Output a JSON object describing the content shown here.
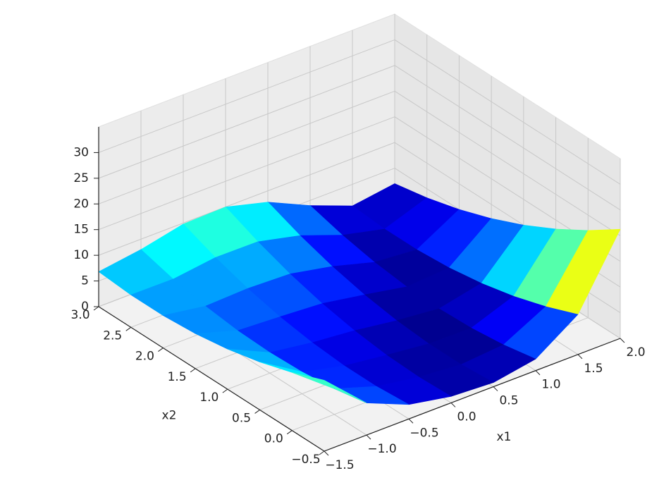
{
  "chart_data": {
    "type": "surface3d",
    "x_label": "x1",
    "y_label": "x2",
    "x": [
      -1.5,
      -1,
      -0.5,
      0,
      0.5,
      1,
      1.5,
      2
    ],
    "y": [
      -0.5,
      0,
      0.5,
      1,
      1.5,
      2,
      2.5,
      3
    ],
    "z": [
      [
        13.81,
        6.25,
        2.81,
        1.25,
        0.81,
        2.25,
        7.81,
        21.25
      ],
      [
        11.31,
        5,
        2.31,
        1,
        0.31,
        1,
        5.31,
        17
      ],
      [
        9.31,
        4.25,
        2.31,
        1.25,
        0.31,
        0.25,
        3.31,
        13.25
      ],
      [
        7.81,
        4,
        2.81,
        2,
        0.81,
        0,
        1.81,
        10
      ],
      [
        6.81,
        4.25,
        3.81,
        3.25,
        1.81,
        0.25,
        0.81,
        7.25
      ],
      [
        6.31,
        5,
        5.31,
        5,
        3.31,
        1,
        0.31,
        5
      ],
      [
        6.31,
        6.25,
        7.31,
        7.25,
        5.31,
        2.25,
        0.31,
        3.25
      ],
      [
        6.81,
        8,
        9.81,
        10,
        7.81,
        4,
        0.81,
        2
      ]
    ],
    "colormap": "jet",
    "xlim": [
      -1.5,
      2
    ],
    "ylim": [
      -0.5,
      3
    ],
    "zlim": [
      0,
      35
    ],
    "xticks": [
      {
        "value": -1.5,
        "label": "−1.5"
      },
      {
        "value": -1,
        "label": "−1.0"
      },
      {
        "value": -0.5,
        "label": "−0.5"
      },
      {
        "value": 0,
        "label": "0.0"
      },
      0.5,
      {
        "value": 1,
        "label": "1.0"
      },
      1.5,
      {
        "value": 2,
        "label": "2.0"
      }
    ],
    "yticks": [
      {
        "value": -0.5,
        "label": "−0.5"
      },
      {
        "value": 0,
        "label": "0.0"
      },
      0.5,
      {
        "value": 1,
        "label": "1.0"
      },
      1.5,
      {
        "value": 2,
        "label": "2.0"
      },
      2.5,
      {
        "value": 3,
        "label": "3.0"
      }
    ],
    "zticks": [
      0,
      5,
      10,
      15,
      20,
      25,
      30
    ],
    "grid": true
  }
}
